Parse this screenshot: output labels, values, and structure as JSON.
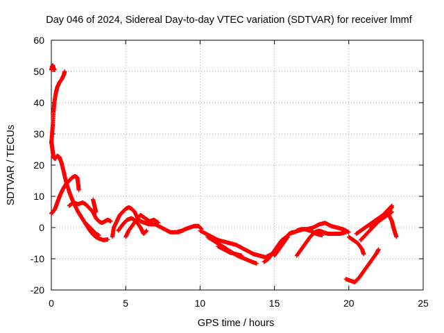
{
  "chart_data": {
    "type": "scatter",
    "title": "Day 046 of 2024, Sidereal Day-to-day VTEC variation (SDTVAR) for receiver lmmf",
    "xlabel": "GPS time / hours",
    "ylabel": "SDTVAR / TECUs",
    "xlim": [
      0,
      25
    ],
    "ylim": [
      -20,
      60
    ],
    "xticks": [
      0,
      5,
      10,
      15,
      20,
      25
    ],
    "yticks": [
      -20,
      -10,
      0,
      10,
      20,
      30,
      40,
      50,
      60
    ],
    "grid": true,
    "marker": "+",
    "marker_color": "#ff0000",
    "series": [
      {
        "name": "rising-high",
        "points": [
          [
            0.0,
            27
          ],
          [
            0.05,
            30
          ],
          [
            0.1,
            33
          ],
          [
            0.15,
            37
          ],
          [
            0.2,
            40
          ],
          [
            0.3,
            43
          ],
          [
            0.4,
            45
          ],
          [
            0.55,
            46.5
          ],
          [
            0.7,
            47.5
          ],
          [
            0.85,
            49
          ],
          [
            0.9,
            50
          ]
        ]
      },
      {
        "name": "top-cluster",
        "points": [
          [
            0.0,
            50.5
          ],
          [
            0.05,
            51.5
          ],
          [
            0.1,
            52
          ],
          [
            0.15,
            51
          ],
          [
            0.2,
            50.5
          ]
        ]
      },
      {
        "name": "descend-from-27",
        "points": [
          [
            0.0,
            27.5
          ],
          [
            0.05,
            26
          ],
          [
            0.1,
            24
          ],
          [
            0.15,
            22.5
          ],
          [
            0.25,
            22
          ],
          [
            0.4,
            23
          ],
          [
            0.55,
            22.5
          ],
          [
            0.7,
            20.5
          ],
          [
            0.85,
            17.5
          ],
          [
            1.0,
            14.5
          ],
          [
            1.2,
            11.5
          ],
          [
            1.4,
            9
          ],
          [
            1.6,
            7
          ],
          [
            1.8,
            5
          ],
          [
            2.0,
            3.5
          ],
          [
            2.2,
            2
          ],
          [
            2.4,
            0.5
          ],
          [
            2.6,
            -1
          ],
          [
            2.8,
            -2.2
          ],
          [
            3.0,
            -3
          ],
          [
            3.2,
            -3.5
          ],
          [
            3.5,
            -4
          ],
          [
            3.8,
            -3.8
          ]
        ]
      },
      {
        "name": "rising-low",
        "points": [
          [
            0.0,
            4.5
          ],
          [
            0.1,
            5
          ],
          [
            0.25,
            6
          ],
          [
            0.4,
            8
          ],
          [
            0.6,
            10.5
          ],
          [
            0.8,
            12.5
          ],
          [
            1.0,
            14
          ],
          [
            1.2,
            15
          ],
          [
            1.4,
            16
          ],
          [
            1.6,
            16.5
          ],
          [
            1.75,
            16
          ],
          [
            1.8,
            14
          ],
          [
            1.85,
            12
          ]
        ]
      },
      {
        "name": "mid-cluster",
        "points": [
          [
            1.2,
            7
          ],
          [
            1.5,
            8
          ],
          [
            1.8,
            7.5
          ],
          [
            2.1,
            8
          ],
          [
            2.3,
            7.5
          ],
          [
            2.5,
            6.5
          ],
          [
            2.8,
            5
          ],
          [
            3.0,
            3
          ],
          [
            3.2,
            2
          ],
          [
            3.4,
            1.5
          ],
          [
            3.6,
            2
          ],
          [
            3.8,
            2.5
          ],
          [
            4.0,
            2
          ]
        ]
      },
      {
        "name": "spikes-3",
        "points": [
          [
            2.8,
            9
          ],
          [
            2.9,
            7
          ],
          [
            3.0,
            5
          ]
        ]
      },
      {
        "name": "dip-near-3",
        "points": [
          [
            2.4,
            1
          ],
          [
            2.6,
            0
          ],
          [
            2.8,
            -1
          ],
          [
            3.0,
            -2
          ],
          [
            3.2,
            -2.5
          ]
        ]
      },
      {
        "name": "day-wave-a",
        "points": [
          [
            4.1,
            -3
          ],
          [
            4.2,
            0
          ],
          [
            4.4,
            2
          ],
          [
            4.6,
            4
          ],
          [
            4.8,
            5
          ],
          [
            5.0,
            6
          ],
          [
            5.2,
            6.5
          ],
          [
            5.4,
            6
          ],
          [
            5.6,
            5
          ],
          [
            5.8,
            3
          ],
          [
            6.0,
            2
          ],
          [
            6.3,
            1.5
          ],
          [
            6.6,
            1
          ],
          [
            7.0,
            1
          ],
          [
            7.4,
            0
          ],
          [
            7.8,
            -1
          ],
          [
            8.0,
            -1.5
          ],
          [
            8.4,
            -1.5
          ],
          [
            8.8,
            -1
          ]
        ]
      },
      {
        "name": "day-wave-b",
        "points": [
          [
            4.5,
            -1
          ],
          [
            4.8,
            1
          ],
          [
            5.1,
            2.5
          ],
          [
            5.4,
            3
          ],
          [
            5.7,
            2
          ],
          [
            6.0,
            0
          ],
          [
            6.2,
            -2
          ],
          [
            6.4,
            -1
          ]
        ]
      },
      {
        "name": "day-wave-c",
        "points": [
          [
            5.0,
            -3
          ],
          [
            5.2,
            -1
          ],
          [
            5.5,
            1
          ],
          [
            5.8,
            3
          ],
          [
            6.0,
            4
          ],
          [
            6.3,
            3
          ],
          [
            6.6,
            2
          ],
          [
            6.9,
            2.5
          ],
          [
            7.2,
            1.5
          ]
        ]
      },
      {
        "name": "plateau-9",
        "points": [
          [
            8.5,
            -1.5
          ],
          [
            8.8,
            -1
          ],
          [
            9.0,
            -0.5
          ],
          [
            9.3,
            0
          ],
          [
            9.6,
            0.5
          ],
          [
            9.9,
            0.5
          ],
          [
            10.1,
            -0.5
          ]
        ]
      },
      {
        "name": "decline-a",
        "points": [
          [
            10.0,
            -1
          ],
          [
            10.4,
            -2
          ],
          [
            10.8,
            -3
          ],
          [
            11.2,
            -4
          ],
          [
            11.6,
            -4.5
          ],
          [
            12.0,
            -5
          ],
          [
            12.4,
            -5.5
          ],
          [
            12.8,
            -6.5
          ],
          [
            13.2,
            -7.5
          ],
          [
            13.6,
            -8.5
          ],
          [
            14.0,
            -9
          ],
          [
            14.4,
            -9.5
          ],
          [
            14.8,
            -8.5
          ],
          [
            15.2,
            -7
          ]
        ]
      },
      {
        "name": "decline-b",
        "points": [
          [
            10.5,
            -3
          ],
          [
            11.0,
            -4.5
          ],
          [
            11.5,
            -6
          ],
          [
            12.0,
            -7.5
          ],
          [
            12.5,
            -9
          ],
          [
            13.0,
            -10
          ],
          [
            13.5,
            -11
          ],
          [
            13.8,
            -11.5
          ]
        ]
      },
      {
        "name": "decline-c",
        "points": [
          [
            11.2,
            -6
          ],
          [
            11.6,
            -7
          ],
          [
            12.0,
            -8
          ],
          [
            12.4,
            -8.5
          ],
          [
            12.8,
            -9
          ]
        ]
      },
      {
        "name": "rise-15",
        "points": [
          [
            14.3,
            -11
          ],
          [
            14.6,
            -10
          ],
          [
            14.9,
            -8
          ],
          [
            15.2,
            -6
          ],
          [
            15.5,
            -4
          ],
          [
            15.8,
            -3
          ],
          [
            16.0,
            -2
          ],
          [
            16.2,
            -1.5
          ]
        ]
      },
      {
        "name": "rise-15b",
        "points": [
          [
            15.0,
            -9
          ],
          [
            15.3,
            -7
          ],
          [
            15.6,
            -5
          ],
          [
            15.9,
            -3
          ]
        ]
      },
      {
        "name": "rise-16",
        "points": [
          [
            16.5,
            -9
          ],
          [
            16.8,
            -7
          ],
          [
            17.1,
            -5
          ],
          [
            17.4,
            -3
          ],
          [
            17.7,
            -1.5
          ],
          [
            18.0,
            -1
          ],
          [
            18.3,
            -1.5
          ],
          [
            18.6,
            -2
          ],
          [
            19.0,
            -2
          ],
          [
            19.4,
            -2
          ],
          [
            19.8,
            -1.5
          ]
        ]
      },
      {
        "name": "arch-17-19",
        "points": [
          [
            16.5,
            -1
          ],
          [
            16.8,
            -0.5
          ],
          [
            17.2,
            -0.5
          ],
          [
            17.6,
            0
          ],
          [
            18.0,
            1
          ],
          [
            18.4,
            1.5
          ],
          [
            18.8,
            0.5
          ],
          [
            19.2,
            0
          ],
          [
            19.6,
            -0.5
          ],
          [
            20.0,
            -1.5
          ]
        ]
      },
      {
        "name": "flat-16",
        "points": [
          [
            16.0,
            -2
          ],
          [
            16.3,
            -1.5
          ],
          [
            16.6,
            -1
          ],
          [
            17.0,
            -0.5
          ],
          [
            17.4,
            -1
          ],
          [
            17.8,
            -2
          ],
          [
            18.2,
            -2.5
          ]
        ]
      },
      {
        "name": "dip-20",
        "points": [
          [
            20.0,
            -3
          ],
          [
            20.3,
            -4
          ],
          [
            20.6,
            -5
          ],
          [
            20.9,
            -7
          ],
          [
            21.0,
            -8.5
          ]
        ]
      },
      {
        "name": "bottom-20",
        "points": [
          [
            19.8,
            -16.5
          ],
          [
            20.1,
            -17
          ],
          [
            20.4,
            -17.5
          ],
          [
            20.7,
            -16
          ],
          [
            21.0,
            -14
          ],
          [
            21.3,
            -12
          ],
          [
            21.6,
            -10
          ],
          [
            21.9,
            -8
          ],
          [
            22.0,
            -7
          ]
        ]
      },
      {
        "name": "end-rise-a",
        "points": [
          [
            20.5,
            -2
          ],
          [
            20.8,
            -1
          ],
          [
            21.1,
            0
          ],
          [
            21.4,
            1
          ],
          [
            21.7,
            2
          ],
          [
            22.0,
            3
          ],
          [
            22.3,
            4
          ],
          [
            22.6,
            5
          ],
          [
            22.9,
            6.5
          ]
        ]
      },
      {
        "name": "end-rise-b",
        "points": [
          [
            20.8,
            -4
          ],
          [
            21.1,
            -2.5
          ],
          [
            21.4,
            -1
          ],
          [
            21.7,
            0.5
          ],
          [
            22.0,
            2
          ],
          [
            22.3,
            3
          ],
          [
            22.6,
            4
          ],
          [
            22.9,
            5
          ]
        ]
      },
      {
        "name": "end-rise-c",
        "points": [
          [
            21.5,
            0
          ],
          [
            21.8,
            1.5
          ],
          [
            22.1,
            3
          ],
          [
            22.4,
            4.5
          ],
          [
            22.7,
            6
          ],
          [
            22.9,
            7
          ]
        ]
      },
      {
        "name": "end-tail",
        "points": [
          [
            22.7,
            4
          ],
          [
            22.9,
            2
          ],
          [
            23.0,
            0
          ],
          [
            23.1,
            -1.5
          ],
          [
            23.2,
            -3
          ]
        ]
      }
    ]
  }
}
